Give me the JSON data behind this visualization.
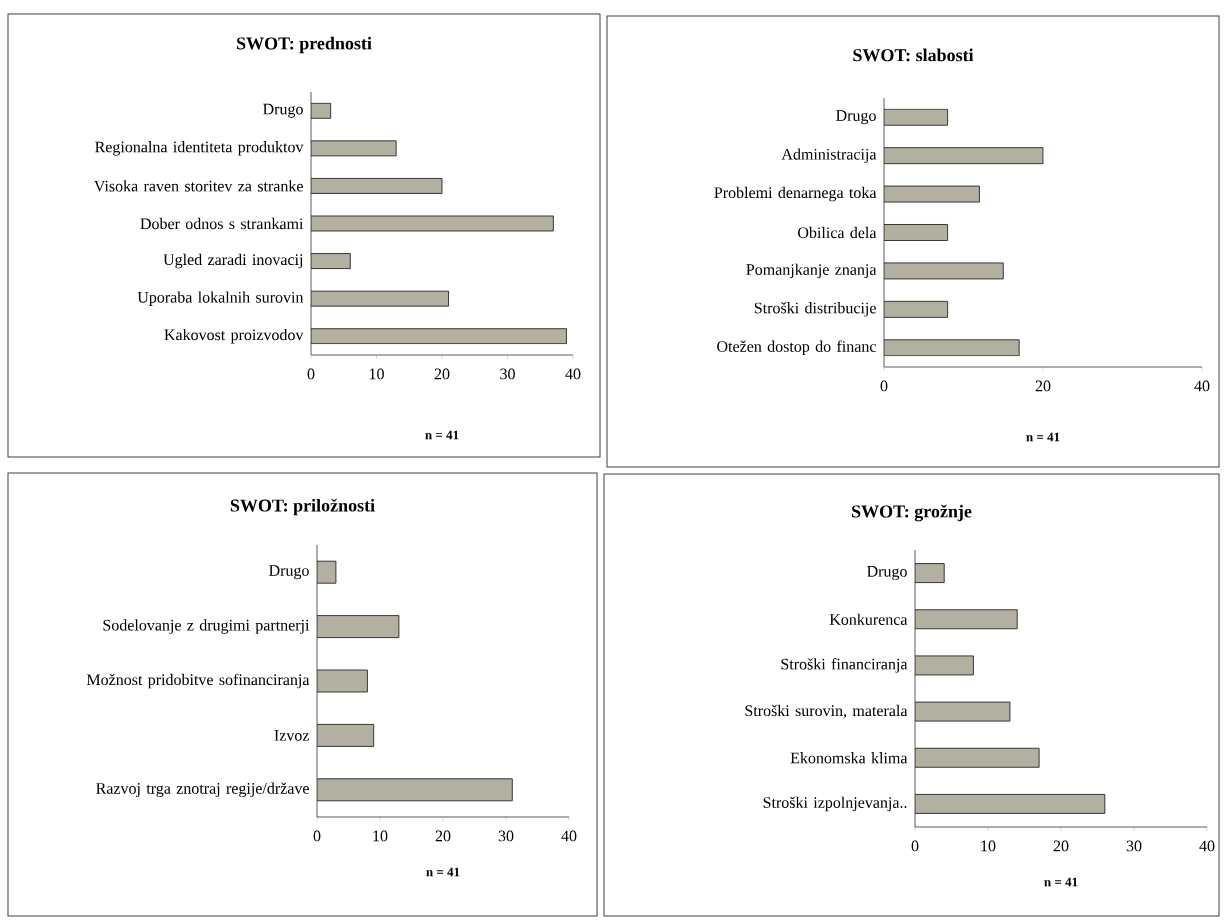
{
  "chart_data": [
    {
      "type": "bar",
      "orientation": "horizontal",
      "title": "SWOT: prednosti",
      "categories": [
        "Drugo",
        "Regionalna identiteta produktov",
        "Visoka raven storitev za stranke",
        "Dober odnos s strankami",
        "Ugled zaradi inovacij",
        "Uporaba lokalnih surovin",
        "Kakovost proizvodov"
      ],
      "values": [
        3,
        13,
        20,
        37,
        6,
        21,
        39
      ],
      "color": "#b3b0a2",
      "xlim": [
        0,
        40
      ],
      "xticks": [
        0,
        10,
        20,
        30,
        40
      ],
      "annotations": [
        "n = 41"
      ]
    },
    {
      "type": "bar",
      "orientation": "horizontal",
      "title": "SWOT: slabosti",
      "categories": [
        "Drugo",
        "Administracija",
        "Problemi denarnega toka",
        "Obilica dela",
        "Pomanjkanje znanja",
        "Stroški distribucije",
        "Otežen dostop do financ"
      ],
      "values": [
        8,
        20,
        12,
        8,
        15,
        8,
        17
      ],
      "color": "#b3b0a2",
      "xlim": [
        0,
        40
      ],
      "xticks": [
        0,
        20,
        40
      ],
      "annotations": [
        "n = 41"
      ]
    },
    {
      "type": "bar",
      "orientation": "horizontal",
      "title": "SWOT: priložnosti",
      "categories": [
        "Drugo",
        "Sodelovanje z drugimi partnerji",
        "Možnost pridobitve sofinanciranja",
        "Izvoz",
        "Razvoj trga znotraj regije/države"
      ],
      "values": [
        3,
        13,
        8,
        9,
        31
      ],
      "color": "#b3b0a2",
      "xlim": [
        0,
        40
      ],
      "xticks": [
        0,
        10,
        20,
        30,
        40
      ],
      "annotations": [
        "n = 41"
      ]
    },
    {
      "type": "bar",
      "orientation": "horizontal",
      "title": "SWOT: grožnje",
      "categories": [
        "Drugo",
        "Konkurenca",
        "Stroški financiranja",
        "Stroški surovin, materala",
        "Ekonomska klima",
        "Stroški izpolnjevanja.."
      ],
      "values": [
        4,
        14,
        8,
        13,
        17,
        26
      ],
      "color": "#b3b0a2",
      "xlim": [
        0,
        40
      ],
      "xticks": [
        0,
        10,
        20,
        30,
        40
      ],
      "annotations": [
        "n = 41"
      ]
    }
  ]
}
